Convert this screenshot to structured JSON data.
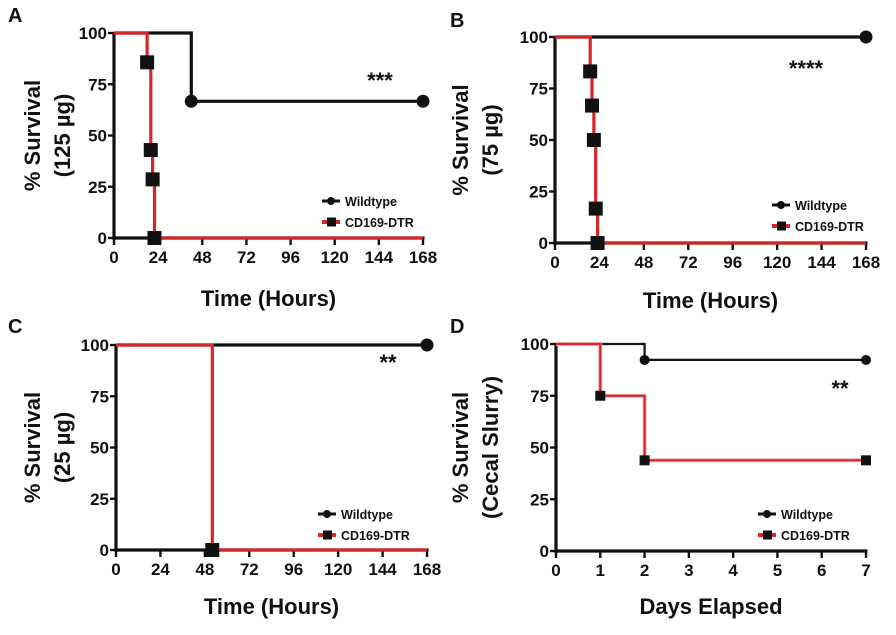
{
  "colors": {
    "wildtype": "#111111",
    "cd169": "#d62728",
    "axis": "#111111"
  },
  "chart_data": [
    {
      "type": "line",
      "panel": "A",
      "title": "",
      "xlabel": "Time (Hours)",
      "ylabel_line1": "% Survival",
      "ylabel_line2": "(125 µg)",
      "xlim": [
        0,
        168
      ],
      "ylim": [
        0,
        100
      ],
      "xticks": [
        0,
        24,
        48,
        72,
        96,
        120,
        144,
        168
      ],
      "yticks": [
        0,
        25,
        50,
        75,
        100
      ],
      "annotation": "***",
      "legend_position": "bottom-right",
      "series": [
        {
          "name": "Wildtype",
          "step": [
            [
              0,
              100
            ],
            [
              42,
              100
            ],
            [
              42,
              66.7
            ],
            [
              168,
              66.7
            ]
          ],
          "markers": [
            [
              42,
              66.7
            ],
            [
              168,
              66.7
            ]
          ]
        },
        {
          "name": "CD169-DTR",
          "step": [
            [
              0,
              100
            ],
            [
              18,
              100
            ],
            [
              18,
              85.7
            ],
            [
              20,
              85.7
            ],
            [
              20,
              42.9
            ],
            [
              21,
              42.9
            ],
            [
              21,
              28.6
            ],
            [
              22,
              28.6
            ],
            [
              22,
              0
            ],
            [
              168,
              0
            ]
          ],
          "markers": [
            [
              18,
              85.7
            ],
            [
              20,
              42.9
            ],
            [
              21,
              28.6
            ],
            [
              22,
              0
            ]
          ]
        }
      ]
    },
    {
      "type": "line",
      "panel": "B",
      "title": "",
      "xlabel": "Time (Hours)",
      "ylabel_line1": "% Survival",
      "ylabel_line2": "(75 µg)",
      "xlim": [
        0,
        168
      ],
      "ylim": [
        0,
        100
      ],
      "xticks": [
        0,
        24,
        48,
        72,
        96,
        120,
        144,
        168
      ],
      "yticks": [
        0,
        25,
        50,
        75,
        100
      ],
      "annotation": "****",
      "legend_position": "bottom-right",
      "series": [
        {
          "name": "Wildtype",
          "step": [
            [
              0,
              100
            ],
            [
              168,
              100
            ]
          ],
          "markers": [
            [
              168,
              100
            ]
          ]
        },
        {
          "name": "CD169-DTR",
          "step": [
            [
              0,
              100
            ],
            [
              19,
              100
            ],
            [
              19,
              83.3
            ],
            [
              20,
              83.3
            ],
            [
              20,
              66.7
            ],
            [
              21,
              66.7
            ],
            [
              21,
              50
            ],
            [
              22,
              50
            ],
            [
              22,
              16.7
            ],
            [
              23,
              16.7
            ],
            [
              23,
              0
            ],
            [
              168,
              0
            ]
          ],
          "markers": [
            [
              19,
              83.3
            ],
            [
              20,
              66.7
            ],
            [
              21,
              50
            ],
            [
              22,
              16.7
            ],
            [
              23,
              0
            ]
          ]
        }
      ]
    },
    {
      "type": "line",
      "panel": "C",
      "title": "",
      "xlabel": "Time (Hours)",
      "ylabel_line1": "% Survival",
      "ylabel_line2": "(25 µg)",
      "xlim": [
        0,
        168
      ],
      "ylim": [
        0,
        100
      ],
      "xticks": [
        0,
        24,
        48,
        72,
        96,
        120,
        144,
        168
      ],
      "yticks": [
        0,
        25,
        50,
        75,
        100
      ],
      "annotation": "**",
      "legend_position": "bottom-right",
      "series": [
        {
          "name": "Wildtype",
          "step": [
            [
              0,
              100
            ],
            [
              168,
              100
            ]
          ],
          "markers": [
            [
              168,
              100
            ]
          ]
        },
        {
          "name": "CD169-DTR",
          "step": [
            [
              0,
              100
            ],
            [
              52,
              100
            ],
            [
              52,
              0
            ],
            [
              168,
              0
            ]
          ],
          "markers": [
            [
              52,
              0
            ]
          ]
        }
      ]
    },
    {
      "type": "line",
      "panel": "D",
      "title": "",
      "xlabel": "Days Elapsed",
      "ylabel_line1": "% Survival",
      "ylabel_line2": "(Cecal Slurry)",
      "xlim": [
        0,
        7
      ],
      "ylim": [
        0,
        100
      ],
      "xticks": [
        0,
        1,
        2,
        3,
        4,
        5,
        6,
        7
      ],
      "yticks": [
        0,
        25,
        50,
        75,
        100
      ],
      "annotation": "**",
      "legend_position": "bottom-right",
      "series": [
        {
          "name": "Wildtype",
          "step": [
            [
              0,
              100
            ],
            [
              2,
              100
            ],
            [
              2,
              92.3
            ],
            [
              7,
              92.3
            ]
          ],
          "markers": [
            [
              2,
              92.3
            ],
            [
              7,
              92.3
            ]
          ]
        },
        {
          "name": "CD169-DTR",
          "step": [
            [
              0,
              100
            ],
            [
              1,
              100
            ],
            [
              1,
              75
            ],
            [
              2,
              75
            ],
            [
              2,
              43.8
            ],
            [
              7,
              43.8
            ]
          ],
          "markers": [
            [
              1,
              75
            ],
            [
              2,
              43.8
            ],
            [
              7,
              43.8
            ]
          ]
        }
      ]
    }
  ]
}
